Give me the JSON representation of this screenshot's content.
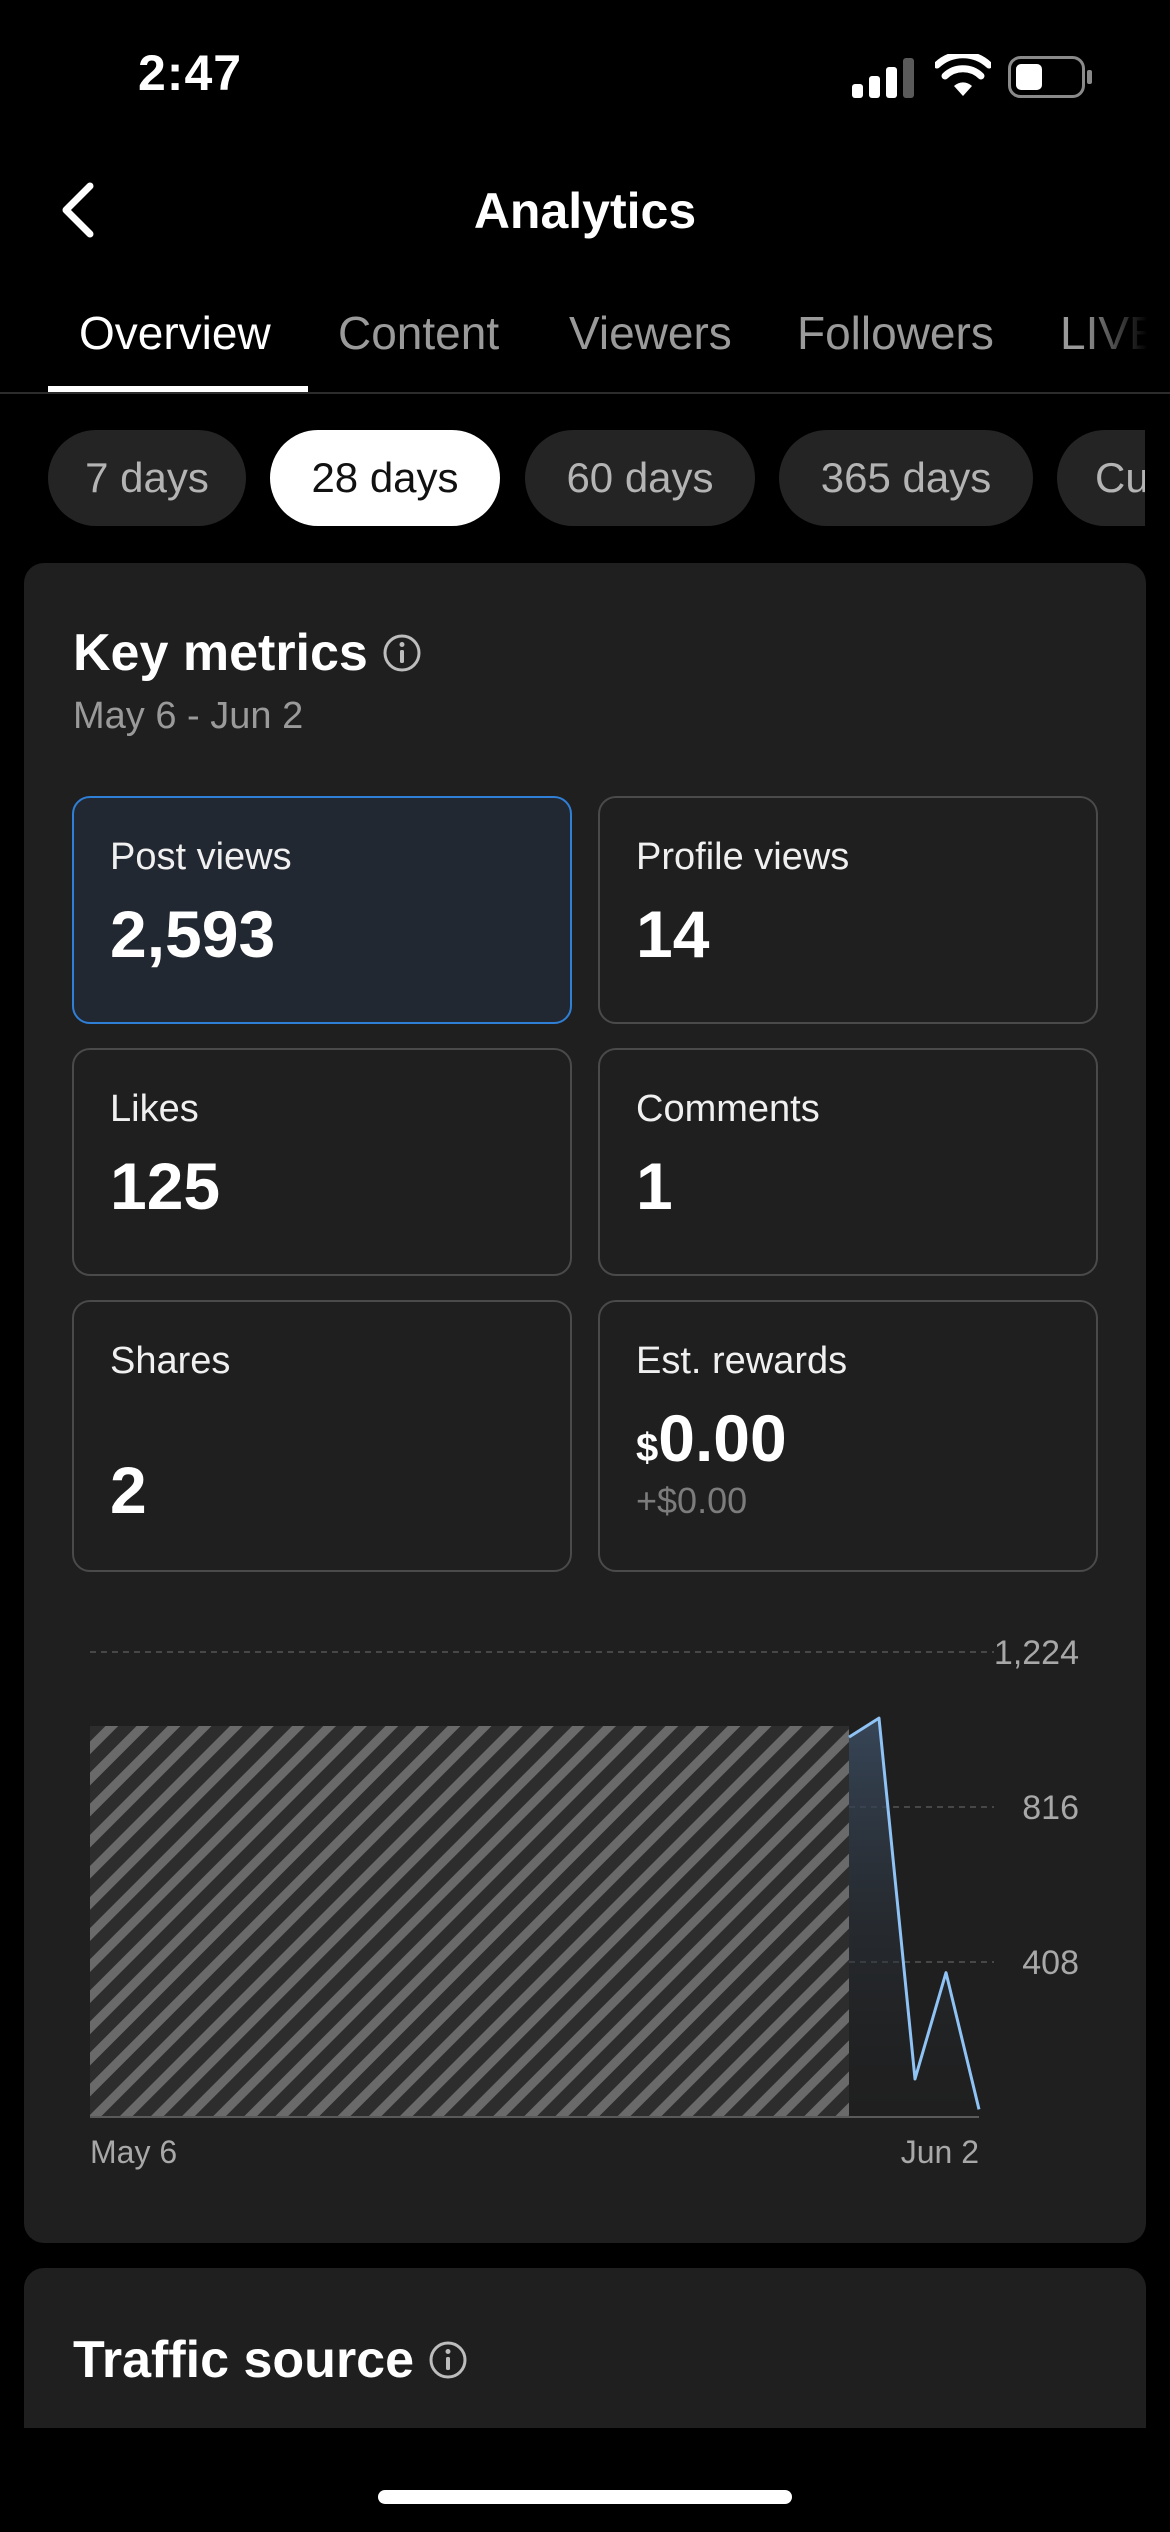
{
  "status_bar": {
    "time": "2:47"
  },
  "header": {
    "title": "Analytics"
  },
  "tabs": [
    {
      "label": "Overview",
      "active": true
    },
    {
      "label": "Content"
    },
    {
      "label": "Viewers"
    },
    {
      "label": "Followers"
    },
    {
      "label": "LIVE"
    }
  ],
  "ranges": [
    {
      "label": "7 days"
    },
    {
      "label": "28 days",
      "active": true
    },
    {
      "label": "60 days"
    },
    {
      "label": "365 days"
    },
    {
      "label": "Cu"
    }
  ],
  "key_metrics": {
    "title": "Key metrics",
    "date_range": "May 6 - Jun 2",
    "metrics": [
      {
        "label": "Post views",
        "value": "2,593",
        "selected": true
      },
      {
        "label": "Profile views",
        "value": "14"
      },
      {
        "label": "Likes",
        "value": "125"
      },
      {
        "label": "Comments",
        "value": "1"
      },
      {
        "label": "Shares",
        "value": "2"
      },
      {
        "label": "Est. rewards",
        "currency_symbol": "$",
        "value": "0.00",
        "change": "+$0.00"
      }
    ]
  },
  "chart_data": {
    "type": "line",
    "title": "",
    "xlabel": "",
    "ylabel": "",
    "x_tick_labels": [
      "May 6",
      "Jun 2"
    ],
    "y_ticks": [
      "1,224",
      "816",
      "408"
    ],
    "ylim": [
      0,
      1224
    ],
    "series": [
      {
        "values": [
          1000,
          1050,
          100,
          380,
          20
        ]
      }
    ],
    "grid": true,
    "hatched_region": "unavailable earlier dates",
    "line_color": "#8fc3f5"
  },
  "traffic_source": {
    "title": "Traffic source"
  },
  "colors": {
    "accent": "#2f7fd6",
    "background": "#000000",
    "card": "#1f1f1f"
  }
}
